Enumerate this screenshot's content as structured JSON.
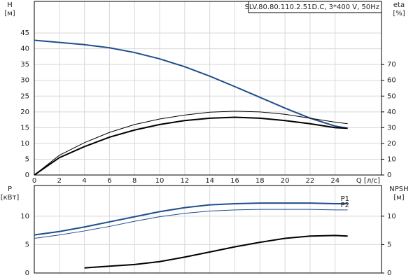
{
  "chart_data": [
    {
      "type": "line",
      "title": "SLV.80.80.110.2.51D.C, 3*400 V, 50Hz",
      "ylabel": "H",
      "yunit": "[м]",
      "y2label": "eta",
      "y2unit": "[%]",
      "xlabel": "Q [л/с]",
      "x": [
        0,
        2,
        4,
        6,
        8,
        10,
        12,
        14,
        16,
        18,
        20,
        22,
        24,
        25
      ],
      "xlim": [
        0,
        27.7
      ],
      "xticks": [
        0,
        2,
        4,
        6,
        8,
        10,
        12,
        14,
        16,
        18,
        20,
        22,
        24
      ],
      "ylim": [
        0,
        55
      ],
      "yticks": [
        0,
        5,
        10,
        15,
        20,
        25,
        30,
        35,
        40,
        45
      ],
      "y2lim": [
        0,
        110
      ],
      "y2ticks": [
        0,
        10,
        20,
        30,
        40,
        50,
        60,
        70
      ],
      "grid": true,
      "series": [
        {
          "color": "#1f4e8c",
          "width": 2,
          "values": [
            42.7,
            42,
            41.3,
            40.3,
            38.8,
            36.8,
            34.3,
            31.3,
            28,
            24.6,
            21.2,
            18,
            15.5,
            14.8
          ]
        },
        {
          "color": "#000000",
          "width": 1,
          "axis": "y2",
          "values": [
            0,
            12.5,
            20.5,
            27,
            32,
            35.5,
            38,
            39.8,
            40.4,
            40,
            38.5,
            36,
            33.5,
            32.5
          ]
        },
        {
          "color": "#000000",
          "width": 2,
          "axis": "y2",
          "values": [
            0,
            11,
            18,
            24,
            28.5,
            32,
            34.5,
            36,
            36.6,
            36,
            34.5,
            32.5,
            30,
            29.6
          ]
        }
      ]
    },
    {
      "type": "line",
      "ylabel": "P",
      "yunit": "[кВт]",
      "y2label": "NPSH",
      "y2unit": "[м]",
      "x": [
        0,
        2,
        4,
        6,
        8,
        10,
        12,
        14,
        16,
        18,
        20,
        22,
        24,
        25
      ],
      "xlim": [
        0,
        27.7
      ],
      "xticks": [
        0,
        2,
        4,
        6,
        8,
        10,
        12,
        14,
        16,
        18,
        20,
        22,
        24
      ],
      "ylim": [
        0,
        15.4
      ],
      "yticks": [
        0,
        5,
        10
      ],
      "y2lim": [
        0,
        15.4
      ],
      "y2ticks": [
        0,
        5,
        10
      ],
      "grid": true,
      "series": [
        {
          "name": "P1",
          "color": "#1f4e8c",
          "width": 2,
          "values": [
            6.7,
            7.3,
            8.1,
            9,
            9.9,
            10.8,
            11.5,
            12,
            12.2,
            12.3,
            12.3,
            12.3,
            12.2,
            12.2
          ]
        },
        {
          "name": "P2",
          "color": "#1f4e8c",
          "width": 1,
          "values": [
            6.1,
            6.7,
            7.4,
            8.2,
            9.1,
            9.9,
            10.5,
            10.9,
            11.1,
            11.2,
            11.2,
            11.2,
            11.1,
            11.1
          ]
        },
        {
          "color": "#000000",
          "width": 2,
          "axis": "y2",
          "values": [
            null,
            null,
            0.9,
            1.2,
            1.5,
            2,
            2.8,
            3.7,
            4.6,
            5.4,
            6.1,
            6.5,
            6.6,
            6.5
          ]
        }
      ]
    }
  ]
}
